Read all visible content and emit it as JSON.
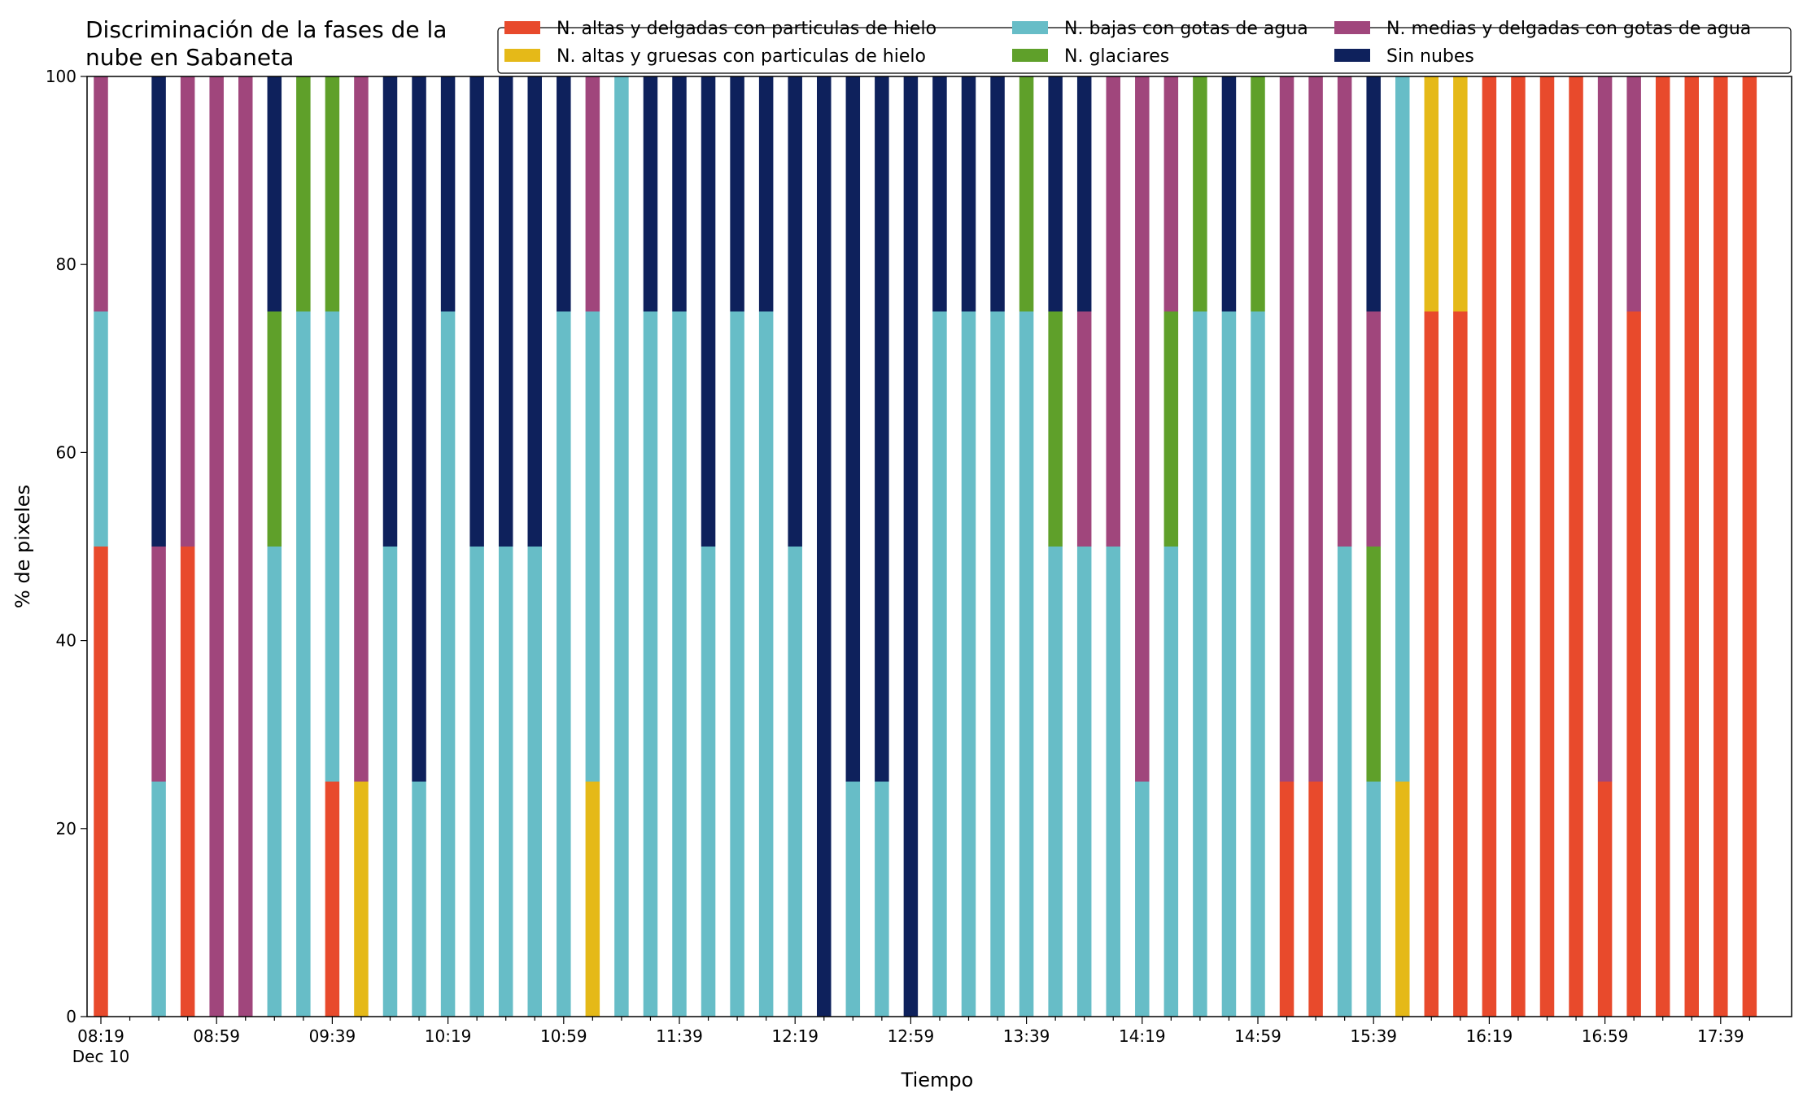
{
  "chart_data": {
    "type": "bar",
    "stacked": true,
    "title": "Discriminación de la fases de la\nnube en Sabaneta",
    "xlabel": "Tiempo",
    "ylabel": "% de pixeles",
    "ylim": [
      0,
      100
    ],
    "yticks": [
      0,
      20,
      40,
      60,
      80,
      100
    ],
    "xticks": [
      "08:19",
      "08:59",
      "09:39",
      "10:19",
      "10:59",
      "11:39",
      "12:19",
      "12:59",
      "13:39",
      "14:19",
      "14:59",
      "15:39",
      "16:19",
      "16:59",
      "17:39"
    ],
    "x_date_label": "Dec 10",
    "x_start": "08:19",
    "x_step_minutes": 10,
    "grid": false,
    "legend_position": "top-right",
    "categories": [
      "08:19",
      "08:29",
      "08:39",
      "08:49",
      "08:59",
      "09:09",
      "09:19",
      "09:29",
      "09:39",
      "09:49",
      "09:59",
      "10:09",
      "10:19",
      "10:29",
      "10:39",
      "10:49",
      "10:59",
      "11:09",
      "11:19",
      "11:29",
      "11:39",
      "11:49",
      "11:59",
      "12:09",
      "12:19",
      "12:29",
      "12:39",
      "12:49",
      "12:59",
      "13:09",
      "13:19",
      "13:29",
      "13:39",
      "13:49",
      "13:59",
      "14:09",
      "14:19",
      "14:29",
      "14:39",
      "14:49",
      "14:59",
      "15:09",
      "15:19",
      "15:29",
      "15:39",
      "15:49",
      "15:59",
      "16:09",
      "16:19",
      "16:29",
      "16:39",
      "16:49",
      "16:59",
      "17:09",
      "17:19",
      "17:29",
      "17:39",
      "17:49"
    ],
    "series": [
      {
        "name": "N. altas y delgadas con particulas de hielo",
        "color": "#e84a2c",
        "values": [
          50,
          0,
          0,
          50,
          0,
          0,
          0,
          0,
          25,
          0,
          0,
          0,
          0,
          0,
          0,
          0,
          0,
          0,
          0,
          0,
          0,
          0,
          0,
          0,
          0,
          0,
          0,
          0,
          0,
          0,
          0,
          0,
          0,
          0,
          0,
          0,
          0,
          0,
          0,
          0,
          0,
          25,
          25,
          0,
          0,
          0,
          75,
          75,
          100,
          100,
          100,
          100,
          25,
          75,
          100,
          100,
          100,
          100
        ]
      },
      {
        "name": "N. altas y gruesas con particulas de hielo",
        "color": "#e5b918",
        "values": [
          0,
          0,
          0,
          0,
          0,
          0,
          0,
          0,
          0,
          25,
          0,
          0,
          0,
          0,
          0,
          0,
          0,
          25,
          0,
          0,
          0,
          0,
          0,
          0,
          0,
          0,
          0,
          0,
          0,
          0,
          0,
          0,
          0,
          0,
          0,
          0,
          0,
          0,
          0,
          0,
          0,
          0,
          0,
          0,
          0,
          25,
          25,
          25,
          0,
          0,
          0,
          0,
          0,
          0,
          0,
          0,
          0,
          0
        ]
      },
      {
        "name": "N. bajas con gotas de agua",
        "color": "#67bdc7",
        "values": [
          25,
          0,
          25,
          0,
          0,
          0,
          50,
          75,
          50,
          0,
          50,
          25,
          75,
          50,
          50,
          50,
          75,
          50,
          100,
          75,
          75,
          50,
          75,
          75,
          50,
          0,
          25,
          25,
          0,
          75,
          75,
          75,
          75,
          50,
          50,
          50,
          25,
          50,
          75,
          75,
          75,
          0,
          0,
          50,
          25,
          75,
          0,
          0,
          0,
          0,
          0,
          0,
          0,
          0,
          0,
          0,
          0,
          0
        ]
      },
      {
        "name": "N. glaciares",
        "color": "#5fa02a",
        "values": [
          0,
          0,
          0,
          0,
          0,
          0,
          25,
          25,
          25,
          0,
          0,
          0,
          0,
          0,
          0,
          0,
          0,
          0,
          0,
          0,
          0,
          0,
          0,
          0,
          0,
          0,
          0,
          0,
          0,
          0,
          0,
          0,
          25,
          25,
          0,
          0,
          0,
          25,
          25,
          0,
          25,
          0,
          0,
          0,
          25,
          0,
          0,
          0,
          0,
          0,
          0,
          0,
          0,
          0,
          0,
          0,
          0,
          0
        ]
      },
      {
        "name": "N. medias y delgadas con gotas de agua",
        "color": "#a0467c",
        "values": [
          25,
          0,
          25,
          50,
          100,
          100,
          0,
          0,
          0,
          75,
          0,
          0,
          0,
          0,
          0,
          0,
          0,
          25,
          0,
          0,
          0,
          0,
          0,
          0,
          0,
          0,
          0,
          0,
          0,
          0,
          0,
          0,
          0,
          0,
          25,
          50,
          75,
          25,
          0,
          0,
          0,
          75,
          75,
          50,
          25,
          0,
          0,
          0,
          0,
          0,
          0,
          0,
          75,
          25,
          0,
          0,
          0,
          0
        ]
      },
      {
        "name": "Sin nubes",
        "color": "#0e215c",
        "values": [
          0,
          0,
          50,
          0,
          0,
          0,
          25,
          0,
          0,
          0,
          50,
          75,
          25,
          50,
          50,
          50,
          25,
          0,
          0,
          25,
          25,
          50,
          25,
          25,
          50,
          100,
          75,
          75,
          100,
          25,
          25,
          25,
          0,
          25,
          25,
          0,
          0,
          0,
          0,
          25,
          0,
          0,
          0,
          0,
          25,
          0,
          0,
          0,
          0,
          0,
          0,
          0,
          0,
          0,
          0,
          0,
          0,
          0
        ]
      }
    ],
    "legend_order": [
      "N. altas y delgadas con particulas de hielo",
      "N. bajas con gotas de agua",
      "N. medias y delgadas con gotas de agua",
      "N. altas y gruesas con particulas de hielo",
      "N. glaciares",
      "Sin nubes"
    ]
  }
}
